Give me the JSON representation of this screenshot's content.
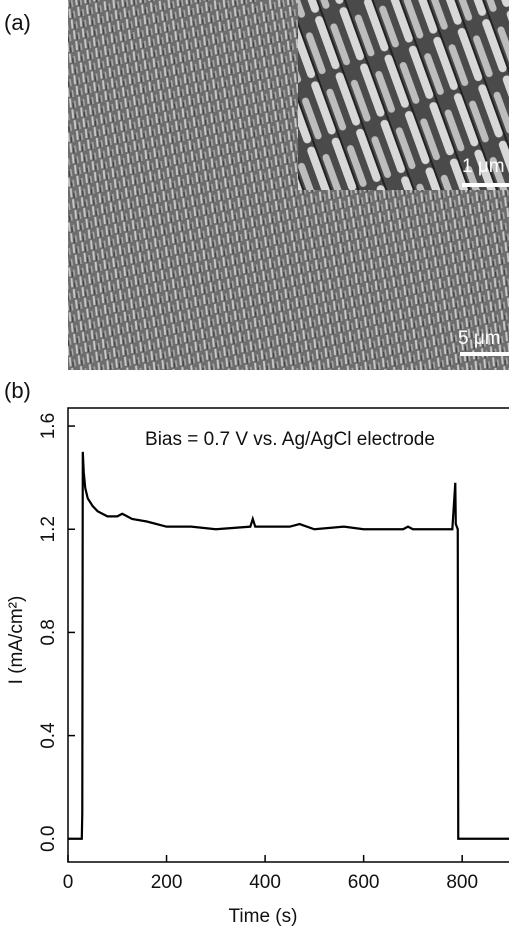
{
  "panel_a": {
    "label": "(a)",
    "inset_scale": "1 μm",
    "scale": "5 μm"
  },
  "chart_data": {
    "type": "line",
    "panel_label": "(b)",
    "annotation": "Bias = 0.7 V vs. Ag/AgCl electrode",
    "x_label": "Time (s)",
    "y_label": "I (mA/cm²)",
    "x": [
      0,
      28,
      29,
      30,
      32,
      35,
      40,
      50,
      60,
      80,
      100,
      110,
      130,
      160,
      200,
      250,
      300,
      370,
      375,
      380,
      450,
      470,
      500,
      560,
      600,
      680,
      690,
      700,
      760,
      780,
      786,
      787,
      791,
      792,
      895
    ],
    "values": [
      0,
      0,
      0.1,
      1.5,
      1.42,
      1.36,
      1.32,
      1.29,
      1.27,
      1.25,
      1.25,
      1.26,
      1.24,
      1.23,
      1.21,
      1.21,
      1.2,
      1.21,
      1.24,
      1.21,
      1.21,
      1.22,
      1.2,
      1.21,
      1.2,
      1.2,
      1.21,
      1.2,
      1.2,
      1.2,
      1.38,
      1.22,
      1.2,
      0,
      0
    ],
    "color": "#000000",
    "xlim": [
      0,
      895
    ],
    "ylim": [
      -0.09,
      1.67
    ],
    "xticks": [
      0,
      200,
      400,
      600,
      800
    ],
    "yticks": [
      {
        "value": 0,
        "label": "0.0"
      },
      {
        "value": 0.4,
        "label": "0.4"
      },
      {
        "value": 0.8,
        "label": "0.8"
      },
      {
        "value": 1.2,
        "label": "1.2"
      },
      {
        "value": 1.6,
        "label": "1.6"
      }
    ]
  }
}
